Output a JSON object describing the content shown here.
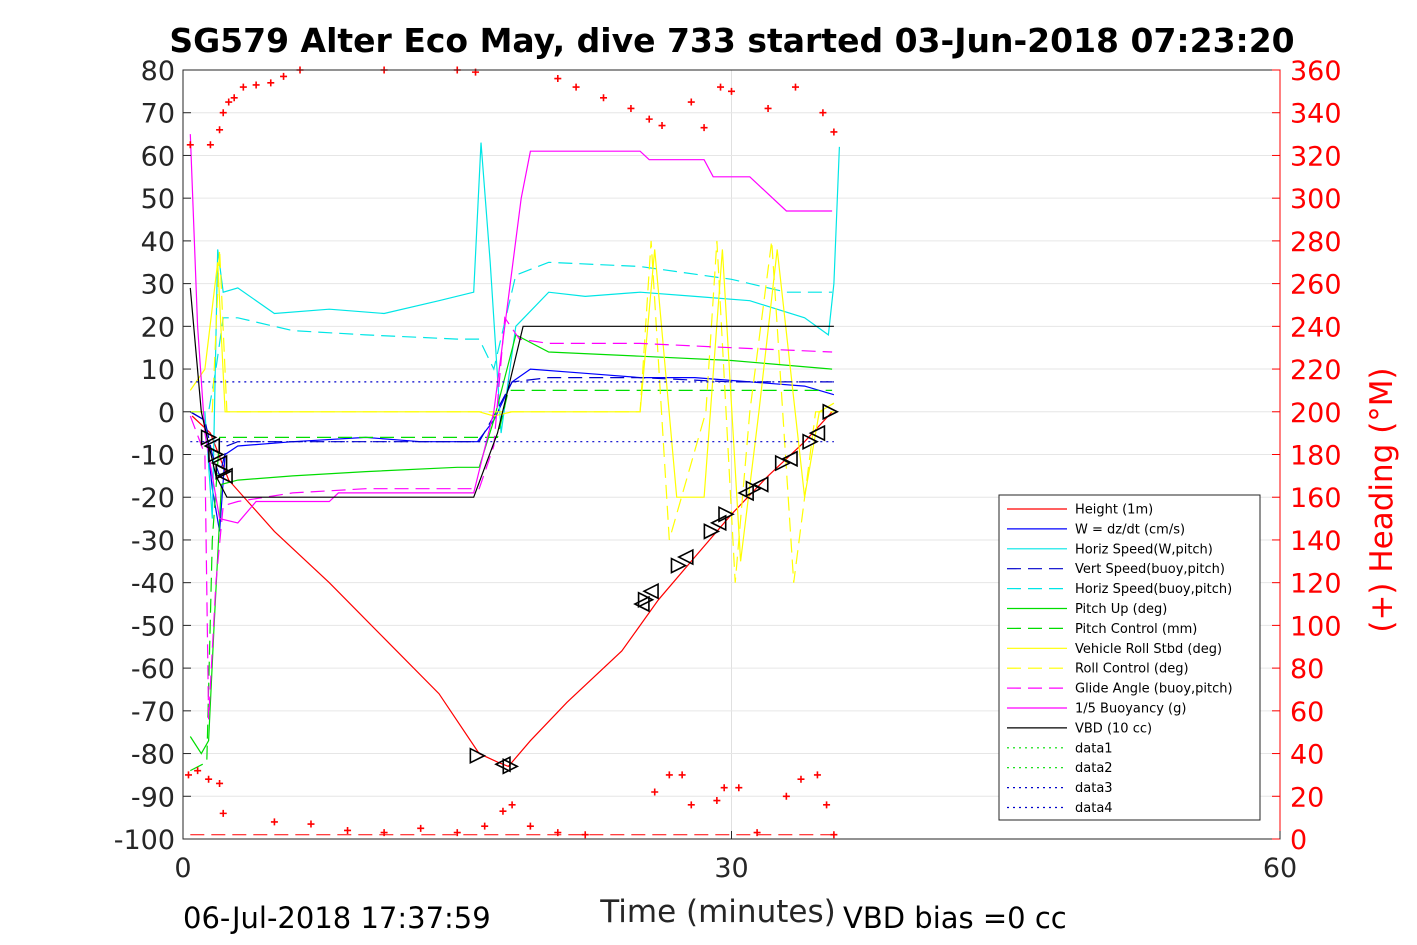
{
  "chart_data": {
    "type": "line",
    "title": "SG579 Alter Eco May, dive 733 started 03-Jun-2018 07:23:20",
    "xlabel": "Time (minutes)",
    "ylabel": "",
    "y2label": "(+) Heading (°M)",
    "xlim": [
      0,
      60
    ],
    "ylim": [
      -100,
      80
    ],
    "y2lim": [
      0,
      360
    ],
    "xticks": [
      "0",
      "30",
      "60"
    ],
    "yticks": [
      "80",
      "70",
      "60",
      "50",
      "40",
      "30",
      "20",
      "10",
      "0",
      "-10",
      "-20",
      "-30",
      "-40",
      "-50",
      "-60",
      "-70",
      "-80",
      "-90",
      "-100"
    ],
    "y2ticks": [
      "360",
      "340",
      "320",
      "300",
      "280",
      "260",
      "240",
      "220",
      "200",
      "180",
      "160",
      "140",
      "120",
      "100",
      "80",
      "60",
      "40",
      "20",
      "0"
    ],
    "grid": true,
    "legend_position": "bottom-right",
    "footer_left": "06-Jul-2018 17:37:59",
    "footer_right": "VBD bias =0 cc",
    "series": [
      {
        "name": "Height (1m)",
        "color": "#ff0000",
        "style": "solid",
        "x": [
          0.5,
          1.5,
          2.5,
          5,
          8,
          11,
          14,
          16.2,
          17.2,
          17.8,
          19,
          21,
          24,
          26,
          28,
          30,
          32,
          34,
          35.5
        ],
        "y": [
          -1,
          -5,
          -16,
          -28,
          -40,
          -53,
          -66,
          -80,
          -82,
          -83,
          -77,
          -68,
          -56,
          -44,
          -34,
          -24,
          -15,
          -7,
          0
        ]
      },
      {
        "name": "W = dz/dt (cm/s)",
        "color": "#0000ff",
        "style": "solid",
        "x": [
          0.4,
          1.2,
          1.6,
          2.0,
          2.3,
          3,
          6,
          10,
          13,
          15,
          16.1,
          17,
          18,
          19,
          22,
          25,
          28,
          31,
          34,
          35.6
        ],
        "y": [
          0,
          -2,
          -18,
          -28,
          -10,
          -8,
          -7,
          -6,
          -7,
          -7,
          -7,
          -2,
          7,
          10,
          9,
          8,
          8,
          7,
          6,
          4
        ]
      },
      {
        "name": "Horiz Speed(W,pitch)",
        "color": "#00e6e6",
        "style": "solid",
        "x": [
          0.4,
          1.2,
          1.6,
          1.9,
          2.2,
          3,
          5,
          8,
          11,
          14,
          15.9,
          16.3,
          16.8,
          17.4,
          18.2,
          20,
          22,
          25,
          28,
          31,
          34,
          35.3,
          35.6,
          35.9
        ],
        "y": [
          0,
          0,
          -25,
          38,
          28,
          29,
          23,
          24,
          23,
          26,
          28,
          63,
          35,
          -5,
          20,
          28,
          27,
          28,
          27,
          26,
          22,
          18,
          30,
          62
        ]
      },
      {
        "name": "Vert Speed(buoy,pitch)",
        "color": "#0000cc",
        "style": "dashed",
        "x": [
          0.4,
          1.2,
          1.6,
          2.0,
          2.4,
          3,
          8,
          15,
          16.2,
          17,
          18,
          20,
          25,
          30,
          35.5
        ],
        "y": [
          0,
          -2,
          -10,
          -15,
          -8,
          -7,
          -7,
          -7,
          -7,
          -1,
          7,
          8,
          8,
          7,
          7
        ]
      },
      {
        "name": "Horiz Speed(buoy,pitch)",
        "color": "#00e6e6",
        "style": "dashed",
        "x": [
          0.4,
          1.4,
          1.8,
          2.2,
          3,
          6,
          10,
          15,
          16.2,
          17,
          18.2,
          20,
          25,
          30,
          33,
          35.5
        ],
        "y": [
          0,
          0,
          10,
          22,
          22,
          19,
          18,
          17,
          17,
          10,
          32,
          35,
          34,
          31,
          28,
          28
        ]
      },
      {
        "name": "Pitch Up (deg)",
        "color": "#00dd00",
        "style": "solid",
        "x": [
          0.4,
          1.0,
          1.4,
          1.7,
          2.1,
          3,
          6,
          10,
          15,
          16.2,
          17,
          18.2,
          20,
          25,
          30,
          35.5
        ],
        "y": [
          -76,
          -80,
          -77,
          -50,
          -17,
          -16,
          -15,
          -14,
          -13,
          -13,
          -2,
          18,
          14,
          13,
          12,
          10
        ]
      },
      {
        "name": "Pitch Control (mm)",
        "color": "#00dd00",
        "style": "dashed",
        "x": [
          0.4,
          1.3,
          1.6,
          2.0,
          3,
          8,
          16.2,
          17.2,
          17.8,
          18.4,
          25,
          35.5
        ],
        "y": [
          -84,
          -82,
          -30,
          -6,
          -6,
          -6,
          -6,
          -6,
          5,
          5,
          5,
          5
        ]
      },
      {
        "name": "Vehicle Roll Stbd (deg)",
        "color": "#ffff00",
        "style": "solid",
        "x": [
          0.4,
          1.2,
          1.9,
          2.3,
          3,
          8,
          15,
          16.2,
          17,
          18,
          25,
          25.8,
          27,
          28.5,
          29.5,
          30.5,
          31.5,
          32.5,
          34,
          34.8,
          35.6
        ],
        "y": [
          5,
          10,
          35,
          0,
          0,
          0,
          0,
          0,
          -1,
          0,
          0,
          38,
          -20,
          -20,
          38,
          -35,
          0,
          38,
          -20,
          0,
          2
        ]
      },
      {
        "name": "Roll Control (deg)",
        "color": "#ffff00",
        "style": "dashed",
        "x": [
          0.4,
          1.6,
          2.0,
          2.4,
          3,
          16,
          17,
          25,
          25.6,
          26.6,
          28.6,
          29.2,
          30.2,
          31,
          32.2,
          33.4,
          34.6,
          35.6
        ],
        "y": [
          0,
          0,
          38,
          0,
          0,
          0,
          0,
          0,
          40,
          -30,
          0,
          40,
          -40,
          0,
          40,
          -40,
          0,
          0
        ]
      },
      {
        "name": "Glide Angle (buoy,pitch)",
        "color": "#ff00ff",
        "style": "dashed",
        "x": [
          0.4,
          1.2,
          1.4,
          1.8,
          2.2,
          3,
          6,
          10,
          15,
          16.2,
          17,
          17.6,
          18.4,
          20,
          25,
          30,
          35.5
        ],
        "y": [
          -1,
          -10,
          -72,
          -40,
          -22,
          -21,
          -19,
          -18,
          -18,
          -18,
          -8,
          22,
          17,
          16,
          16,
          15,
          14
        ]
      },
      {
        "name": "1/5 Buoyancy (g)",
        "color": "#ff00ff",
        "style": "solid",
        "x": [
          0.4,
          0.8,
          1.2,
          1.6,
          2.0,
          3,
          4,
          6,
          8,
          8.5,
          10,
          14,
          15.9,
          17,
          18.5,
          19,
          25,
          25.5,
          28.5,
          29,
          31,
          33,
          35.5
        ],
        "y": [
          65,
          20,
          -5,
          -15,
          -25,
          -26,
          -21,
          -21,
          -21,
          -19,
          -19,
          -19,
          -19,
          0,
          50,
          61,
          61,
          59,
          59,
          55,
          55,
          47,
          47
        ]
      },
      {
        "name": "VBD (10 cc)",
        "color": "#000000",
        "style": "solid",
        "x": [
          0.4,
          1.0,
          1.8,
          2.4,
          3,
          15.9,
          17.2,
          18.6,
          25,
          35.6
        ],
        "y": [
          29,
          0,
          -15,
          -20,
          -20,
          -20,
          -5,
          20,
          20,
          20
        ]
      },
      {
        "name": "data1",
        "color": "#00dd00",
        "style": "dotted",
        "x": [],
        "y": []
      },
      {
        "name": "data2",
        "color": "#00dd00",
        "style": "dotted",
        "x": [],
        "y": []
      },
      {
        "name": "data3",
        "color": "#0000cc",
        "style": "dotted",
        "x": [
          0.4,
          35.6
        ],
        "y": [
          7,
          7
        ]
      },
      {
        "name": "data4",
        "color": "#0000cc",
        "style": "dotted",
        "x": [
          0.4,
          35.6
        ],
        "y": [
          -7,
          -7
        ]
      }
    ],
    "heading_points": [
      [
        0.4,
        325
      ],
      [
        1.5,
        325
      ],
      [
        2.0,
        332
      ],
      [
        2.2,
        340
      ],
      [
        2.5,
        345
      ],
      [
        2.8,
        347
      ],
      [
        3.3,
        352
      ],
      [
        4,
        353
      ],
      [
        4.8,
        354
      ],
      [
        5.5,
        357
      ],
      [
        6.4,
        360
      ],
      [
        11,
        360
      ],
      [
        15,
        360
      ],
      [
        16,
        359
      ],
      [
        20.5,
        356
      ],
      [
        21.5,
        352
      ],
      [
        23,
        347
      ],
      [
        24.5,
        342
      ],
      [
        25.5,
        337
      ],
      [
        26.2,
        334
      ],
      [
        27.8,
        345
      ],
      [
        28.5,
        333
      ],
      [
        29.4,
        352
      ],
      [
        30,
        350
      ],
      [
        32,
        342
      ],
      [
        33.5,
        352
      ],
      [
        35,
        340
      ],
      [
        35.6,
        331
      ],
      [
        0.3,
        30
      ],
      [
        0.8,
        32
      ],
      [
        1.4,
        28
      ],
      [
        2.0,
        26
      ],
      [
        2.2,
        12
      ],
      [
        5,
        8
      ],
      [
        7,
        7
      ],
      [
        9,
        4
      ],
      [
        11,
        3
      ],
      [
        13,
        5
      ],
      [
        15,
        3
      ],
      [
        16.5,
        6
      ],
      [
        17.5,
        13
      ],
      [
        18,
        16
      ],
      [
        19,
        6
      ],
      [
        20.5,
        3
      ],
      [
        22,
        2
      ],
      [
        25.8,
        22
      ],
      [
        26.6,
        30
      ],
      [
        27.3,
        30
      ],
      [
        27.8,
        16
      ],
      [
        29.2,
        18
      ],
      [
        29.6,
        24
      ],
      [
        30.4,
        24
      ],
      [
        31.4,
        3
      ],
      [
        33,
        20
      ],
      [
        33.8,
        28
      ],
      [
        34.7,
        30
      ],
      [
        35.2,
        16
      ],
      [
        35.6,
        2
      ]
    ],
    "heading_reference": {
      "color": "#ff0000",
      "style": "dashed",
      "y2": 2
    },
    "vbd_markers": [
      [
        1.4,
        -6
      ],
      [
        1.6,
        -8
      ],
      [
        1.8,
        -10
      ],
      [
        2.0,
        -12
      ],
      [
        2.2,
        -14
      ],
      [
        2.3,
        -15
      ],
      [
        16.1,
        -80.5
      ],
      [
        17.5,
        -82.5
      ],
      [
        17.9,
        -83
      ],
      [
        25.1,
        -45
      ],
      [
        25.3,
        -44
      ],
      [
        25.6,
        -42
      ],
      [
        27.1,
        -36
      ],
      [
        27.5,
        -34
      ],
      [
        28.9,
        -28
      ],
      [
        29.3,
        -26
      ],
      [
        29.7,
        -24
      ],
      [
        30.8,
        -19
      ],
      [
        31.2,
        -18
      ],
      [
        31.6,
        -17
      ],
      [
        32.8,
        -12
      ],
      [
        33.2,
        -11
      ],
      [
        34.3,
        -7
      ],
      [
        34.7,
        -5
      ],
      [
        35.4,
        0
      ]
    ]
  }
}
